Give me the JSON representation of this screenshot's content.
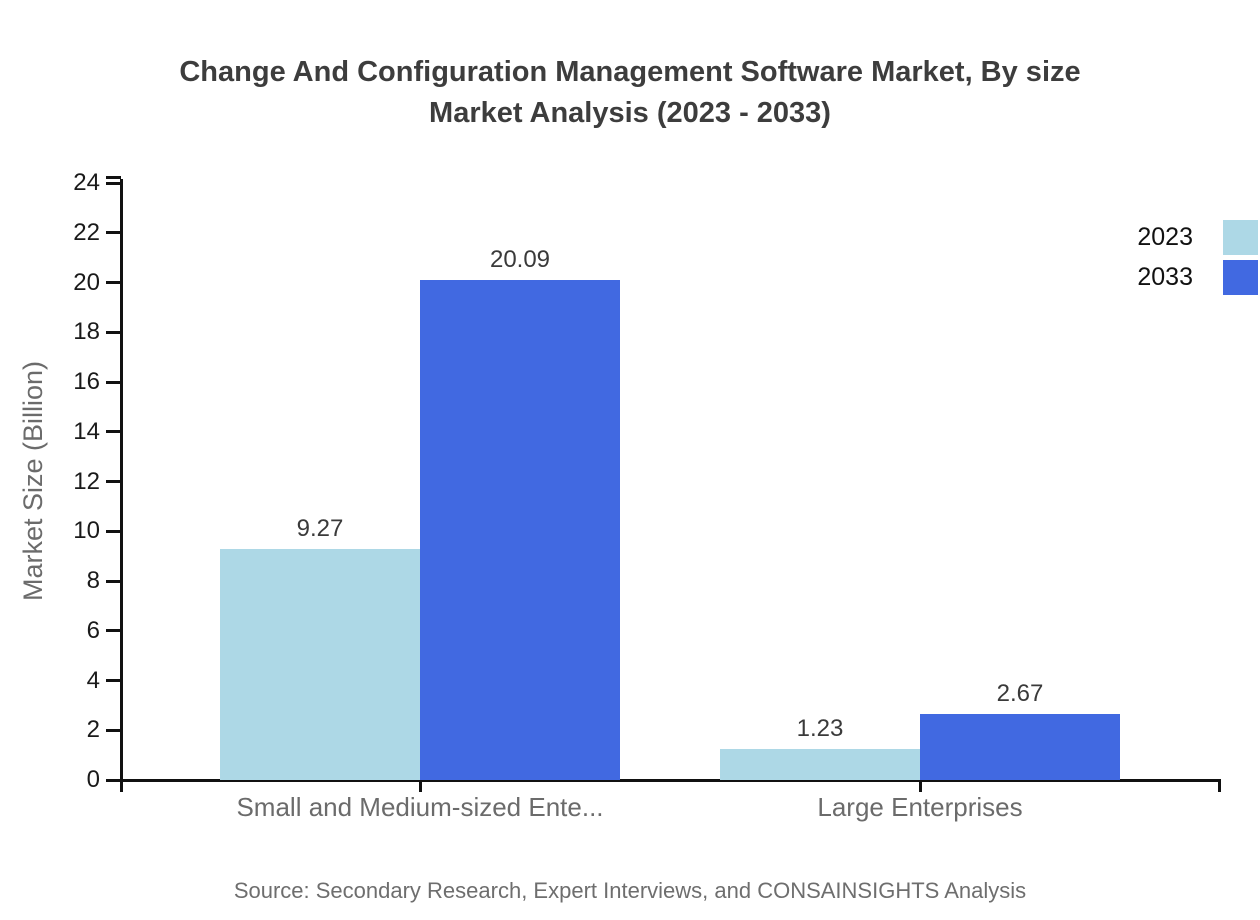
{
  "title": {
    "line1": "Change And Configuration Management Software Market, By size",
    "line2": "Market Analysis (2023 - 2033)"
  },
  "source_note": "Source: Secondary Research, Expert Interviews, and CONSAINSIGHTS Analysis",
  "chart_data": {
    "type": "bar",
    "title": "Change And Configuration Management Software Market, By size Market Analysis (2023 - 2033)",
    "categories": [
      "Small and Medium-sized Ente...",
      "Large Enterprises"
    ],
    "series": [
      {
        "name": "2023",
        "color": "#ADD8E6",
        "values": [
          9.27,
          1.23
        ]
      },
      {
        "name": "2033",
        "color": "#4169E1",
        "values": [
          20.09,
          2.67
        ]
      }
    ],
    "value_labels": [
      [
        "9.27",
        "1.23"
      ],
      [
        "20.09",
        "2.67"
      ]
    ],
    "xlabel": "",
    "ylabel": "Market Size (Billion)",
    "ylim": [
      0,
      24
    ],
    "ytick_step": 2,
    "ytick_labels": [
      "0",
      "2",
      "4",
      "6",
      "8",
      "10",
      "12",
      "14",
      "16",
      "18",
      "20",
      "22",
      "24"
    ],
    "grid": false,
    "legend_position": "top-right",
    "axis_color": "#111111",
    "tick_text_color": "#1a1a1a",
    "category_text_color": "#6b6b6b",
    "value_text_color": "#3a3a3a"
  }
}
